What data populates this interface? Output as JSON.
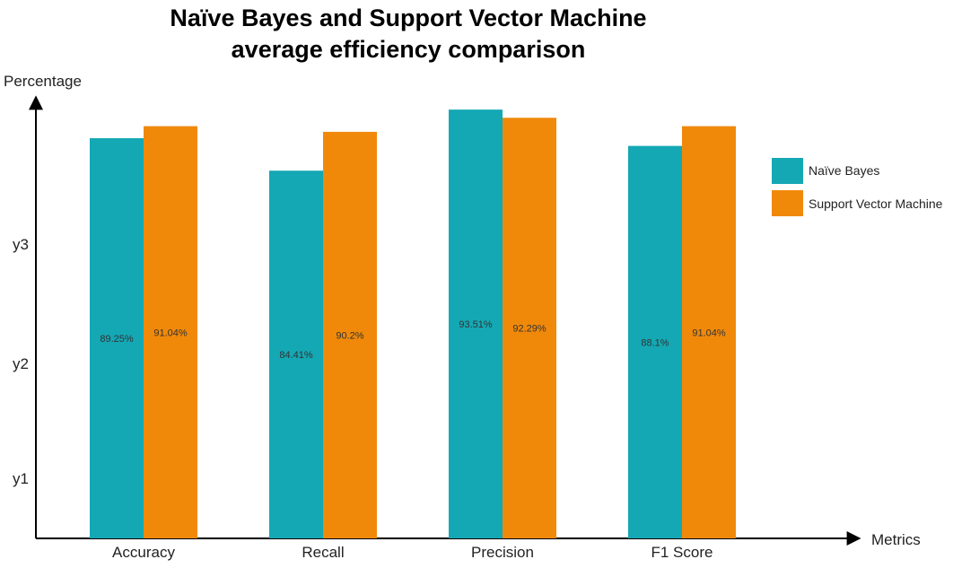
{
  "chart_data": {
    "type": "bar",
    "title": [
      "Naïve Bayes and Support Vector Machine",
      "average efficiency comparison"
    ],
    "xlabel": "Metrics",
    "ylabel": "Percentage",
    "categories": [
      "Accuracy",
      "Recall",
      "Precision",
      "F1 Score"
    ],
    "y_ticks": [
      "y1",
      "y2",
      "y3"
    ],
    "series": [
      {
        "name": "Naïve Bayes",
        "color": "#14a8b4",
        "values": [
          89.25,
          84.41,
          93.51,
          88.1
        ],
        "labels": [
          "89.25%",
          "84.41%",
          "93.51%",
          "88.1%"
        ]
      },
      {
        "name": "Support Vector Machine",
        "color": "#f0890a",
        "values": [
          91.04,
          90.2,
          92.29,
          91.04
        ],
        "labels": [
          "91.04%",
          "90.2%",
          "92.29%",
          "91.04%"
        ]
      }
    ],
    "legend_position": "right",
    "grid": false
  }
}
